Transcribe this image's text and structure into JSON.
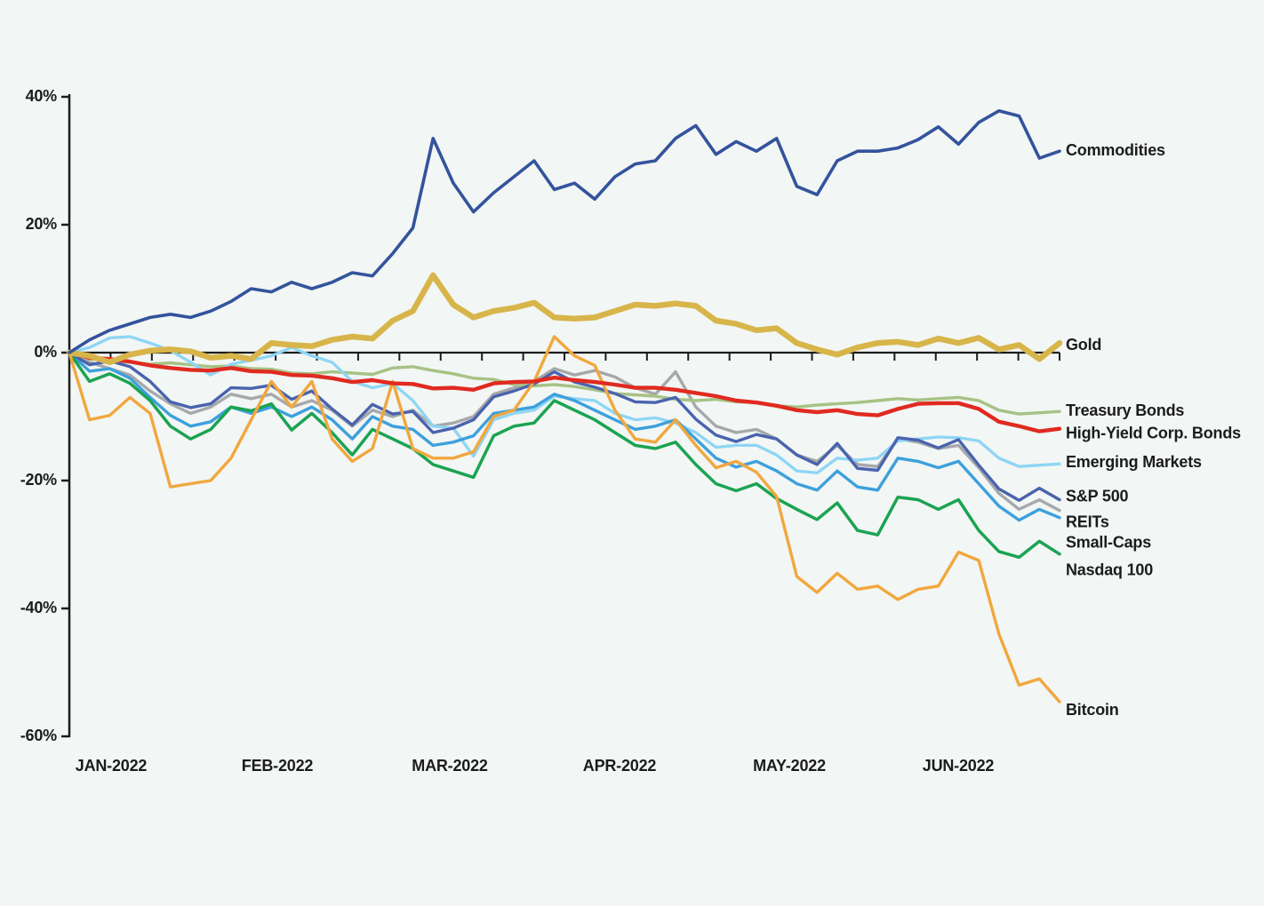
{
  "chart_data": {
    "type": "line",
    "title": "",
    "background_color": "#f2f6f4",
    "axis_color": "#1c1c1c",
    "text_color": "#1c1c1c",
    "grid": false,
    "legend_position": "right-end-labels",
    "y_axis": {
      "unit": "%",
      "ylim": [
        -60,
        40
      ],
      "tick_values": [
        40,
        20,
        0,
        -20,
        -40,
        -60
      ],
      "tick_labels": [
        "40%",
        "20%",
        "0%",
        "-20%",
        "-40%",
        "-60%"
      ]
    },
    "x_axis": {
      "tick_labels": [
        "JAN-2022",
        "FEB-2022",
        "MAR-2022",
        "APR-2022",
        "MAY-2022",
        "JUN-2022"
      ],
      "minor_tick_count": 24,
      "minor_ticks_on_zero_line": true
    },
    "x": [
      "Jan 3",
      "Jan 7",
      "Jan 11",
      "Jan 14",
      "Jan 19",
      "Jan 21",
      "Jan 25",
      "Jan 28",
      "Feb 1",
      "Feb 4",
      "Feb 8",
      "Feb 11",
      "Feb 15",
      "Feb 18",
      "Feb 23",
      "Feb 25",
      "Mar 1",
      "Mar 4",
      "Mar 8",
      "Mar 11",
      "Mar 15",
      "Mar 18",
      "Mar 22",
      "Mar 25",
      "Mar 29",
      "Apr 1",
      "Apr 5",
      "Apr 8",
      "Apr 12",
      "Apr 14",
      "Apr 19",
      "Apr 22",
      "Apr 26",
      "Apr 29",
      "May 3",
      "May 6",
      "May 10",
      "May 12",
      "May 17",
      "May 20",
      "May 24",
      "May 27",
      "Jun 1",
      "Jun 3",
      "Jun 7",
      "Jun 10",
      "Jun 13",
      "Jun 16",
      "Jun 21",
      "Jun 24"
    ],
    "series": [
      {
        "id": "reits",
        "name": "REITs",
        "color": "#a6a8ab",
        "line_weight": 3.4,
        "values": [
          0,
          -1.5,
          -2.5,
          -3.5,
          -6,
          -8,
          -9.5,
          -8.5,
          -6.5,
          -7.2,
          -6.5,
          -8.5,
          -7.5,
          -9,
          -11.5,
          -9,
          -10,
          -9,
          -11.5,
          -11,
          -10,
          -6.5,
          -5.5,
          -4.5,
          -2.5,
          -3.5,
          -2.8,
          -3.8,
          -5.5,
          -6.5,
          -3,
          -8.5,
          -11.5,
          -12.5,
          -12,
          -13.5,
          -16,
          -17,
          -14.5,
          -17.5,
          -17.8,
          -13.5,
          -14,
          -15,
          -14.5,
          -18,
          -22,
          -24.5,
          -23,
          -24.7
        ]
      },
      {
        "id": "treasury_bonds",
        "name": "Treasury Bonds",
        "color": "#a6c285",
        "line_weight": 3.4,
        "values": [
          0,
          -1,
          -1.2,
          -1.5,
          -1.8,
          -1.6,
          -1.9,
          -2.2,
          -2.1,
          -2.5,
          -2.6,
          -3.2,
          -3.3,
          -3,
          -3.2,
          -3.4,
          -2.4,
          -2.2,
          -2.8,
          -3.3,
          -4,
          -4.2,
          -5,
          -5.2,
          -5,
          -5.3,
          -5.8,
          -6.4,
          -6.6,
          -6.8,
          -7.3,
          -7.5,
          -7.3,
          -7.7,
          -7.8,
          -8.3,
          -8.5,
          -8.2,
          -8,
          -7.8,
          -7.5,
          -7.2,
          -7.4,
          -7.2,
          -7,
          -7.5,
          -9,
          -9.6,
          -9.4,
          -9.2
        ]
      },
      {
        "id": "emerging_markets",
        "name": "Emerging Markets",
        "color": "#8ed5f5",
        "line_weight": 3.3,
        "values": [
          0,
          0.8,
          2.3,
          2.5,
          1.5,
          0.3,
          -1.5,
          -3.5,
          -1.8,
          -1.2,
          -0.5,
          0.8,
          -0.5,
          -1.5,
          -4.5,
          -5.5,
          -4.8,
          -7.5,
          -11.5,
          -11.8,
          -16.2,
          -10.5,
          -9.5,
          -9,
          -6.8,
          -7.2,
          -7.5,
          -9.5,
          -10.5,
          -10.2,
          -11,
          -12.5,
          -14.8,
          -14.5,
          -14.5,
          -16,
          -18.5,
          -18.8,
          -16.5,
          -16.8,
          -16.5,
          -13.8,
          -13.5,
          -13.2,
          -13.3,
          -13.8,
          -16.5,
          -17.8,
          -17.6,
          -17.4
        ]
      },
      {
        "id": "small_caps",
        "name": "Small-Caps",
        "color": "#3da0dc",
        "line_weight": 3.4,
        "values": [
          0,
          -2.9,
          -2.5,
          -4,
          -7,
          -9.8,
          -11.5,
          -10.8,
          -8.5,
          -9.5,
          -8.5,
          -10,
          -8.5,
          -10.5,
          -13.5,
          -10,
          -11.5,
          -12,
          -14.5,
          -14,
          -13,
          -9.5,
          -9,
          -8.5,
          -6.5,
          -7.5,
          -9,
          -10.5,
          -12,
          -11.5,
          -10.5,
          -13.5,
          -16.5,
          -17.9,
          -17,
          -18.5,
          -20.5,
          -21.5,
          -18.5,
          -21,
          -21.5,
          -16.5,
          -17,
          -18,
          -17,
          -20.5,
          -24,
          -26.2,
          -24.5,
          -25.8
        ]
      },
      {
        "id": "sp500",
        "name": "S&P 500",
        "color": "#4a63ae",
        "line_weight": 3.4,
        "values": [
          0,
          -1.9,
          -1.3,
          -2.2,
          -4.5,
          -7.7,
          -8.6,
          -8,
          -5.5,
          -5.6,
          -5.1,
          -7.3,
          -6,
          -8.8,
          -11.3,
          -8.1,
          -9.6,
          -9.2,
          -12.5,
          -11.8,
          -10.5,
          -6.9,
          -6,
          -4.9,
          -3,
          -4.6,
          -5.4,
          -6.4,
          -7.7,
          -7.8,
          -7,
          -10.4,
          -12.9,
          -13.9,
          -12.8,
          -13.5,
          -16,
          -17.5,
          -14.2,
          -18.1,
          -18.4,
          -13.3,
          -13.7,
          -14.9,
          -13.6,
          -17.6,
          -21.3,
          -23.1,
          -21.2,
          -23
        ]
      },
      {
        "id": "nasdaq_100",
        "name": "Nasdaq 100",
        "color": "#1ba352",
        "line_weight": 3.5,
        "values": [
          0,
          -4.5,
          -3.3,
          -4.8,
          -7.5,
          -11.5,
          -13.5,
          -12,
          -8.5,
          -9.1,
          -8,
          -12.1,
          -9.5,
          -12.5,
          -16,
          -12,
          -13.5,
          -15,
          -17.5,
          -18.5,
          -19.5,
          -13,
          -11.5,
          -11,
          -7.5,
          -9,
          -10.5,
          -12.5,
          -14.5,
          -15,
          -14,
          -17.5,
          -20.5,
          -21.6,
          -20.5,
          -22.8,
          -24.5,
          -26.1,
          -23.5,
          -27.8,
          -28.5,
          -22.6,
          -23,
          -24.5,
          -23,
          -27.8,
          -31.1,
          -32,
          -29.5,
          -31.5
        ]
      },
      {
        "id": "bitcoin",
        "name": "Bitcoin",
        "color": "#f1a73e",
        "line_weight": 3.4,
        "values": [
          0,
          -10.5,
          -9.8,
          -7,
          -9.5,
          -21,
          -20.5,
          -20,
          -16.5,
          -10.5,
          -4.5,
          -8.5,
          -4.5,
          -13.5,
          -17,
          -15,
          -4.5,
          -15,
          -16.5,
          -16.5,
          -15.5,
          -10,
          -9,
          -4.5,
          2.5,
          -0.5,
          -2,
          -9,
          -13.5,
          -14,
          -10.5,
          -14.5,
          -18,
          -17,
          -18.7,
          -22.5,
          -35,
          -37.5,
          -34.5,
          -37,
          -36.5,
          -38.6,
          -37,
          -36.5,
          -31.2,
          -32.5,
          -44,
          -52,
          -51,
          -54.6
        ]
      },
      {
        "id": "high_yield_corp_bonds",
        "name": "High-Yield Corp. Bonds",
        "color": "#e02a20",
        "line_weight": 4.4,
        "values": [
          0,
          -0.8,
          -1,
          -1.4,
          -2,
          -2.4,
          -2.7,
          -2.8,
          -2.4,
          -2.9,
          -3,
          -3.5,
          -3.6,
          -4,
          -4.6,
          -4.3,
          -4.8,
          -4.9,
          -5.6,
          -5.5,
          -5.8,
          -4.8,
          -4.6,
          -4.5,
          -3.9,
          -4.3,
          -4.6,
          -5,
          -5.5,
          -5.5,
          -5.8,
          -6.3,
          -6.8,
          -7.5,
          -7.8,
          -8.3,
          -9,
          -9.3,
          -9,
          -9.6,
          -9.8,
          -8.8,
          -8,
          -7.9,
          -7.9,
          -8.8,
          -10.8,
          -11.5,
          -12.3,
          -11.9
        ]
      },
      {
        "id": "gold",
        "name": "Gold",
        "color": "#d8b54a",
        "line_weight": 6.5,
        "values": [
          0,
          -0.5,
          -1.5,
          -0.3,
          0.3,
          0.5,
          0.2,
          -0.8,
          -0.5,
          -1,
          1.5,
          1.2,
          1,
          2,
          2.5,
          2.2,
          5,
          6.5,
          12.1,
          7.5,
          5.5,
          6.5,
          7,
          7.8,
          5.5,
          5.3,
          5.5,
          6.5,
          7.5,
          7.3,
          7.7,
          7.3,
          5,
          4.5,
          3.5,
          3.8,
          1.5,
          0.5,
          -0.3,
          0.8,
          1.5,
          1.7,
          1.2,
          2.2,
          1.5,
          2.3,
          0.5,
          1.2,
          -1,
          1.5
        ]
      },
      {
        "id": "commodities",
        "name": "Commodities",
        "color": "#34539d",
        "line_weight": 3.6,
        "values": [
          0,
          2,
          3.5,
          4.5,
          5.5,
          6,
          5.5,
          6.5,
          8,
          10,
          9.5,
          11,
          10,
          11,
          12.5,
          12,
          15.5,
          19.5,
          33.5,
          26.5,
          22,
          25,
          27.5,
          30,
          25.5,
          26.5,
          24,
          27.5,
          29.5,
          30,
          33.5,
          35.5,
          31,
          33,
          31.5,
          33.5,
          26,
          24.7,
          30,
          31.5,
          31.5,
          32,
          33.3,
          35.3,
          32.6,
          36,
          37.8,
          37,
          30.4,
          31.5
        ]
      }
    ]
  }
}
